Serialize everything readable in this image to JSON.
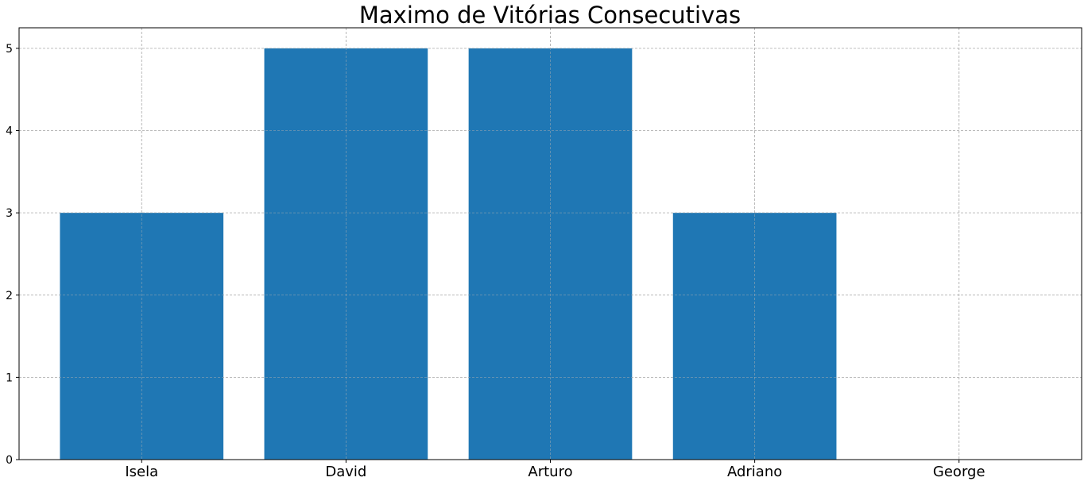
{
  "chart_data": {
    "type": "bar",
    "title": "Maximo de Vitórias Consecutivas",
    "xlabel": "",
    "ylabel": "",
    "categories": [
      "Isela",
      "David",
      "Arturo",
      "Adriano",
      "George"
    ],
    "values": [
      3,
      5,
      5,
      3,
      0
    ],
    "ylim": [
      0,
      5.25
    ],
    "yticks": [
      "0",
      "1",
      "2",
      "3",
      "4",
      "5"
    ],
    "grid": true,
    "bar_color": "#1f77b4",
    "grid_color": "#b0b0b0"
  }
}
